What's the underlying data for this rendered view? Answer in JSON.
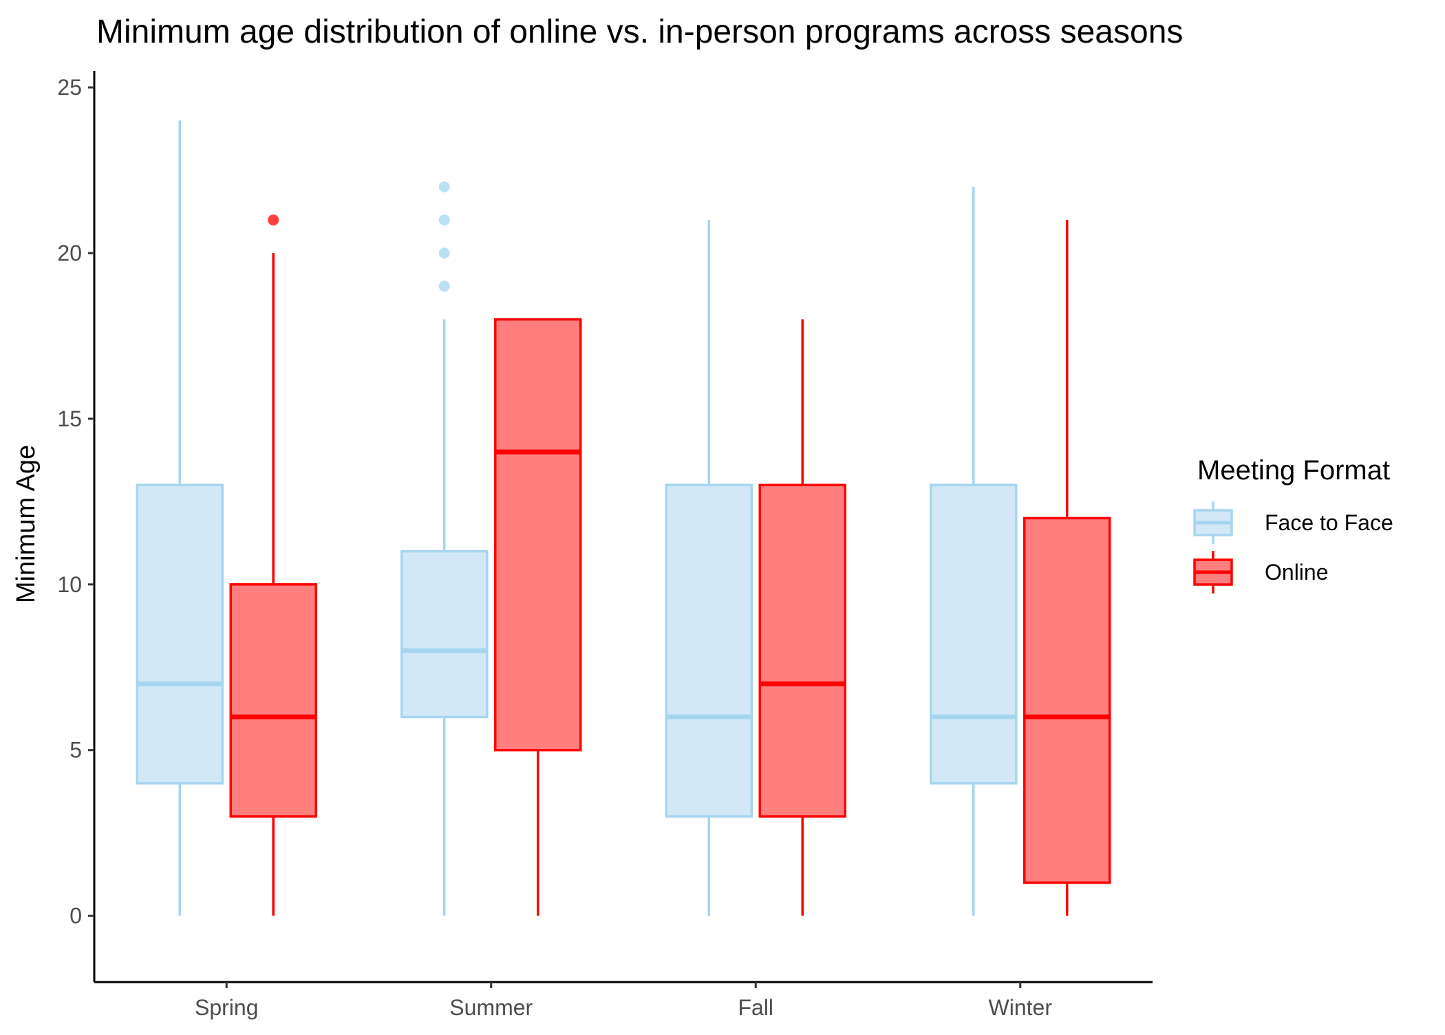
{
  "chart_data": {
    "type": "boxplot",
    "title": "Minimum age distribution of online vs. in-person programs across seasons",
    "xlabel": "",
    "ylabel": "Minimum Age",
    "ylim": [
      -2,
      25.5
    ],
    "yticks": [
      0,
      5,
      10,
      15,
      20,
      25
    ],
    "grid": false,
    "categories": [
      "Spring",
      "Summer",
      "Fall",
      "Winter"
    ],
    "legend": {
      "title": "Meeting Format",
      "placement": "right"
    },
    "series": [
      {
        "name": "Face to Face",
        "stroke": "#a6d5ef",
        "fill": "#d2e8f7",
        "boxes": [
          {
            "category": "Spring",
            "whisker_low": 0,
            "q1": 4,
            "median": 7,
            "q3": 13,
            "whisker_high": 24,
            "outliers": []
          },
          {
            "category": "Summer",
            "whisker_low": 0,
            "q1": 6,
            "median": 8,
            "q3": 11,
            "whisker_high": 18,
            "outliers": [
              19,
              20,
              21,
              22
            ]
          },
          {
            "category": "Fall",
            "whisker_low": 0,
            "q1": 3,
            "median": 6,
            "q3": 13,
            "whisker_high": 21,
            "outliers": []
          },
          {
            "category": "Winter",
            "whisker_low": 0,
            "q1": 4,
            "median": 6,
            "q3": 13,
            "whisker_high": 22,
            "outliers": []
          }
        ]
      },
      {
        "name": "Online",
        "stroke": "#ff0000",
        "fill": "#ff7f7f",
        "boxes": [
          {
            "category": "Spring",
            "whisker_low": 0,
            "q1": 3,
            "median": 6,
            "q3": 10,
            "whisker_high": 20,
            "outliers": [
              21
            ]
          },
          {
            "category": "Summer",
            "whisker_low": 0,
            "q1": 5,
            "median": 14,
            "q3": 18,
            "whisker_high": 18,
            "outliers": []
          },
          {
            "category": "Fall",
            "whisker_low": 0,
            "q1": 3,
            "median": 7,
            "q3": 13,
            "whisker_high": 18,
            "outliers": []
          },
          {
            "category": "Winter",
            "whisker_low": 0,
            "q1": 1,
            "median": 6,
            "q3": 12,
            "whisker_high": 21,
            "outliers": []
          }
        ]
      }
    ]
  }
}
